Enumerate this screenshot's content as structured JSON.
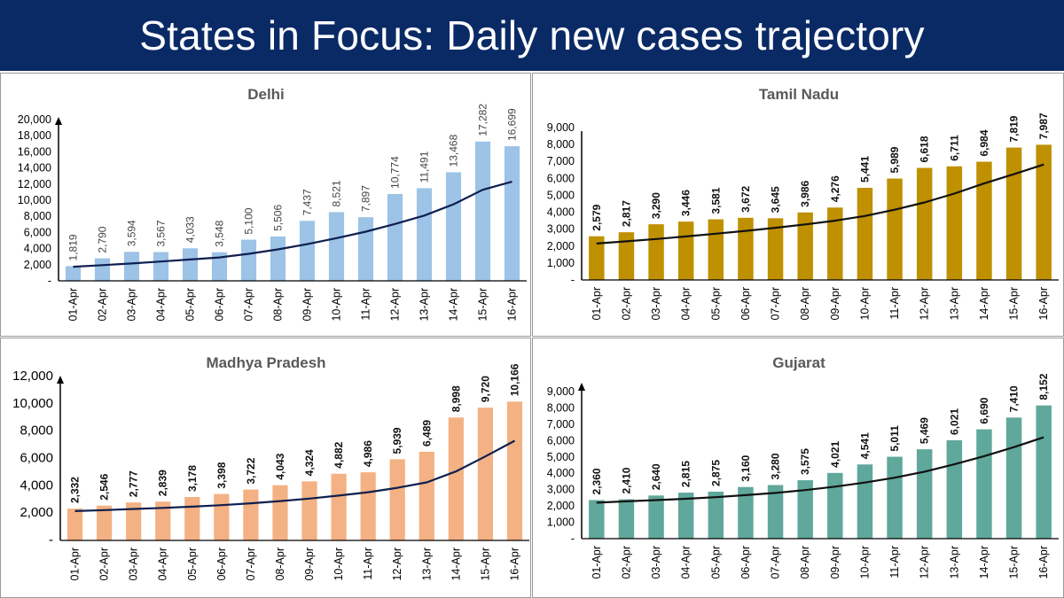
{
  "header": {
    "title": "States in Focus: Daily new cases trajectory"
  },
  "chart_data": [
    {
      "type": "bar",
      "title": "Delhi",
      "bar_color": "#9dc3e6",
      "label_bold": false,
      "categories": [
        "01-Apr",
        "02-Apr",
        "03-Apr",
        "04-Apr",
        "05-Apr",
        "06-Apr",
        "07-Apr",
        "08-Apr",
        "09-Apr",
        "10-Apr",
        "11-Apr",
        "12-Apr",
        "13-Apr",
        "14-Apr",
        "15-Apr",
        "16-Apr"
      ],
      "values": [
        1819,
        2790,
        3594,
        3567,
        4033,
        3548,
        5100,
        5506,
        7437,
        8521,
        7897,
        10774,
        11491,
        13468,
        17282,
        16699
      ],
      "data_labels": [
        "1,819",
        "2,790",
        "3,594",
        "3,567",
        "4,033",
        "3,548",
        "5,100",
        "5,506",
        "7,437",
        "8,521",
        "7,897",
        "10,774",
        "11,491",
        "13,468",
        "17,282",
        "16,699"
      ],
      "trend": [
        1750,
        1950,
        2150,
        2400,
        2650,
        2900,
        3350,
        3900,
        4550,
        5300,
        6100,
        7050,
        8100,
        9500,
        11300,
        12300
      ],
      "ylim": [
        0,
        20000
      ],
      "yticks": [
        0,
        2000,
        4000,
        6000,
        8000,
        10000,
        12000,
        14000,
        16000,
        18000,
        20000
      ],
      "ytick_labels": [
        "-",
        "2,000",
        "4,000",
        "6,000",
        "8,000",
        "10,000",
        "12,000",
        "14,000",
        "16,000",
        "18,000",
        "20,000"
      ],
      "y_axis_arrow": true
    },
    {
      "type": "bar",
      "title": "Tamil Nadu",
      "bar_color": "#bf9000",
      "label_bold": true,
      "categories": [
        "01-Apr",
        "02-Apr",
        "03-Apr",
        "04-Apr",
        "05-Apr",
        "06-Apr",
        "07-Apr",
        "08-Apr",
        "09-Apr",
        "10-Apr",
        "11-Apr",
        "12-Apr",
        "13-Apr",
        "14-Apr",
        "15-Apr",
        "16-Apr"
      ],
      "values": [
        2579,
        2817,
        3290,
        3446,
        3581,
        3672,
        3645,
        3986,
        4276,
        5441,
        5989,
        6618,
        6711,
        6984,
        7819,
        7987
      ],
      "data_labels": [
        "2,579",
        "2,817",
        "3,290",
        "3,446",
        "3,581",
        "3,672",
        "3,645",
        "3,986",
        "4,276",
        "5,441",
        "5,989",
        "6,618",
        "6,711",
        "6,984",
        "7,819",
        "7,987"
      ],
      "trend": [
        2150,
        2280,
        2420,
        2570,
        2730,
        2900,
        3080,
        3280,
        3500,
        3780,
        4150,
        4580,
        5100,
        5700,
        6250,
        6820
      ],
      "ylim": [
        0,
        9000
      ],
      "yticks": [
        0,
        1000,
        2000,
        3000,
        4000,
        5000,
        6000,
        7000,
        8000,
        9000
      ],
      "ytick_labels": [
        "-",
        "1,000",
        "2,000",
        "3,000",
        "4,000",
        "5,000",
        "6,000",
        "7,000",
        "8,000",
        "9,000"
      ],
      "y_axis_arrow": false
    },
    {
      "type": "bar",
      "title": "Madhya Pradesh",
      "bar_color": "#f4b183",
      "label_bold": true,
      "categories": [
        "01-Apr",
        "02-Apr",
        "03-Apr",
        "04-Apr",
        "05-Apr",
        "06-Apr",
        "07-Apr",
        "08-Apr",
        "09-Apr",
        "10-Apr",
        "11-Apr",
        "12-Apr",
        "13-Apr",
        "14-Apr",
        "15-Apr",
        "16-Apr"
      ],
      "values": [
        2332,
        2546,
        2777,
        2839,
        3178,
        3398,
        3722,
        4043,
        4324,
        4882,
        4986,
        5939,
        6489,
        8998,
        9720,
        10166
      ],
      "data_labels": [
        "2,332",
        "2,546",
        "2,777",
        "2,839",
        "3,178",
        "3,398",
        "3,722",
        "4,043",
        "4,324",
        "4,882",
        "4,986",
        "5,939",
        "6,489",
        "8,998",
        "9,720",
        "10,166"
      ],
      "trend": [
        2150,
        2220,
        2300,
        2380,
        2470,
        2580,
        2720,
        2880,
        3060,
        3280,
        3530,
        3850,
        4250,
        5050,
        6150,
        7300
      ],
      "ylim": [
        0,
        12000
      ],
      "yticks": [
        0,
        2000,
        4000,
        6000,
        8000,
        10000,
        12000
      ],
      "ytick_labels": [
        "-",
        "2,000",
        "4,000",
        "6,000",
        "8,000",
        "10,000",
        "12,000"
      ],
      "y_axis_arrow": true
    },
    {
      "type": "bar",
      "title": "Gujarat",
      "bar_color": "#5fa89b",
      "label_bold": true,
      "categories": [
        "01-Apr",
        "02-Apr",
        "03-Apr",
        "04-Apr",
        "05-Apr",
        "06-Apr",
        "07-Apr",
        "08-Apr",
        "09-Apr",
        "10-Apr",
        "11-Apr",
        "12-Apr",
        "13-Apr",
        "14-Apr",
        "15-Apr",
        "16-Apr"
      ],
      "values": [
        2360,
        2410,
        2640,
        2815,
        2875,
        3160,
        3280,
        3575,
        4021,
        4541,
        5011,
        5469,
        6021,
        6690,
        7410,
        8152
      ],
      "data_labels": [
        "2,360",
        "2,410",
        "2,640",
        "2,815",
        "2,875",
        "3,160",
        "3,280",
        "3,575",
        "4,021",
        "4,541",
        "5,011",
        "5,469",
        "6,021",
        "6,690",
        "7,410",
        "8,152"
      ],
      "trend": [
        2200,
        2280,
        2360,
        2440,
        2540,
        2660,
        2800,
        2970,
        3180,
        3430,
        3730,
        4100,
        4550,
        5050,
        5600,
        6200
      ],
      "ylim": [
        0,
        9000
      ],
      "yticks": [
        0,
        1000,
        2000,
        3000,
        4000,
        5000,
        6000,
        7000,
        8000,
        9000
      ],
      "ytick_labels": [
        "-",
        "1,000",
        "2,000",
        "3,000",
        "4,000",
        "5,000",
        "6,000",
        "7,000",
        "8,000",
        "9,000"
      ],
      "y_axis_arrow": true
    }
  ]
}
